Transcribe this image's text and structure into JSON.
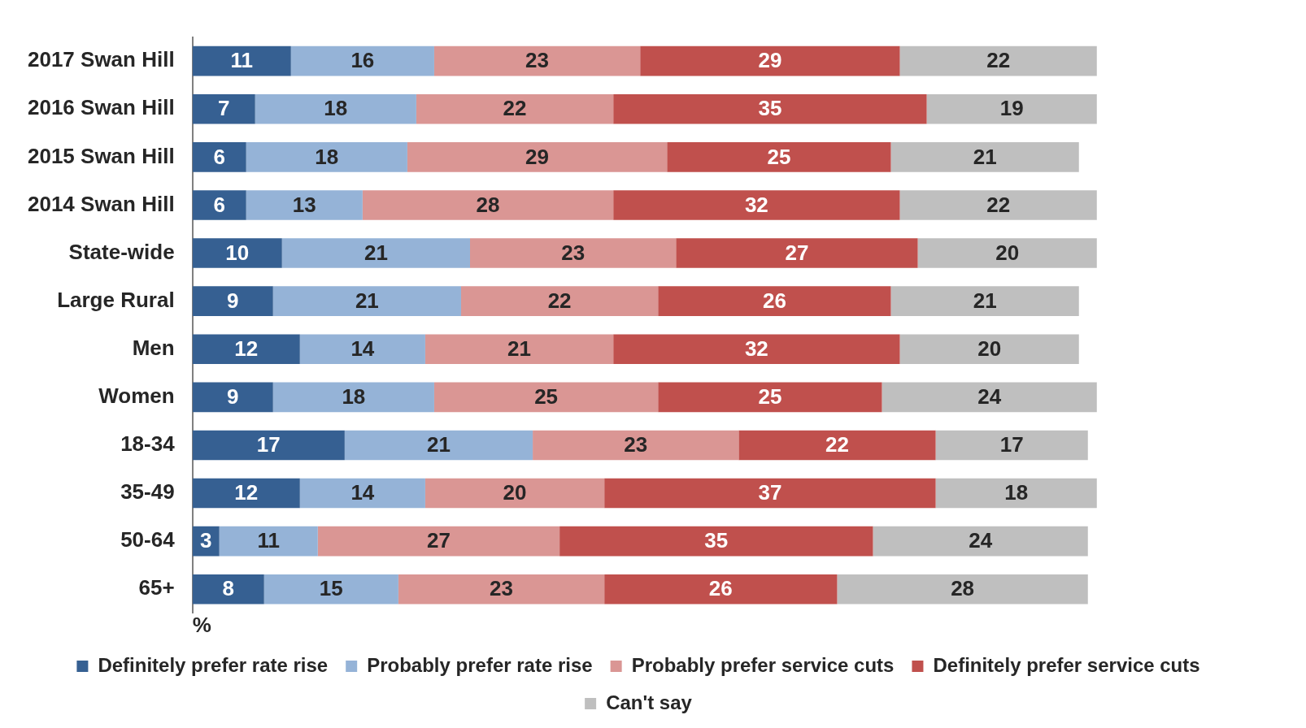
{
  "chart_data": {
    "type": "bar",
    "orientation": "horizontal",
    "stacked": true,
    "data_labels": true,
    "grid": false,
    "legend": "bottom",
    "tick_labels": "y",
    "xlabel": "%",
    "categories": [
      "2017 Swan Hill",
      "2016 Swan Hill",
      "2015 Swan Hill",
      "2014 Swan Hill",
      "State-wide",
      "Large Rural",
      "Men",
      "Women",
      "18-34",
      "35-49",
      "50-64",
      "65+"
    ],
    "series": [
      {
        "name": "Definitely prefer rate rise",
        "color": "#366092",
        "values": [
          11,
          7,
          6,
          6,
          10,
          9,
          12,
          9,
          17,
          12,
          3,
          8
        ]
      },
      {
        "name": "Probably prefer rate rise",
        "color": "#95b3d7",
        "values": [
          16,
          18,
          18,
          13,
          21,
          21,
          14,
          18,
          21,
          14,
          11,
          15
        ]
      },
      {
        "name": "Probably prefer service cuts",
        "color": "#da9694",
        "values": [
          23,
          22,
          29,
          28,
          23,
          22,
          21,
          25,
          23,
          20,
          27,
          23
        ]
      },
      {
        "name": "Definitely prefer service cuts",
        "color": "#c0504d",
        "values": [
          29,
          35,
          25,
          32,
          27,
          26,
          32,
          25,
          22,
          37,
          35,
          26
        ]
      },
      {
        "name": "Can't say",
        "color": "#bfbfbf",
        "values": [
          22,
          19,
          21,
          22,
          20,
          21,
          20,
          24,
          17,
          18,
          24,
          28
        ]
      }
    ]
  }
}
